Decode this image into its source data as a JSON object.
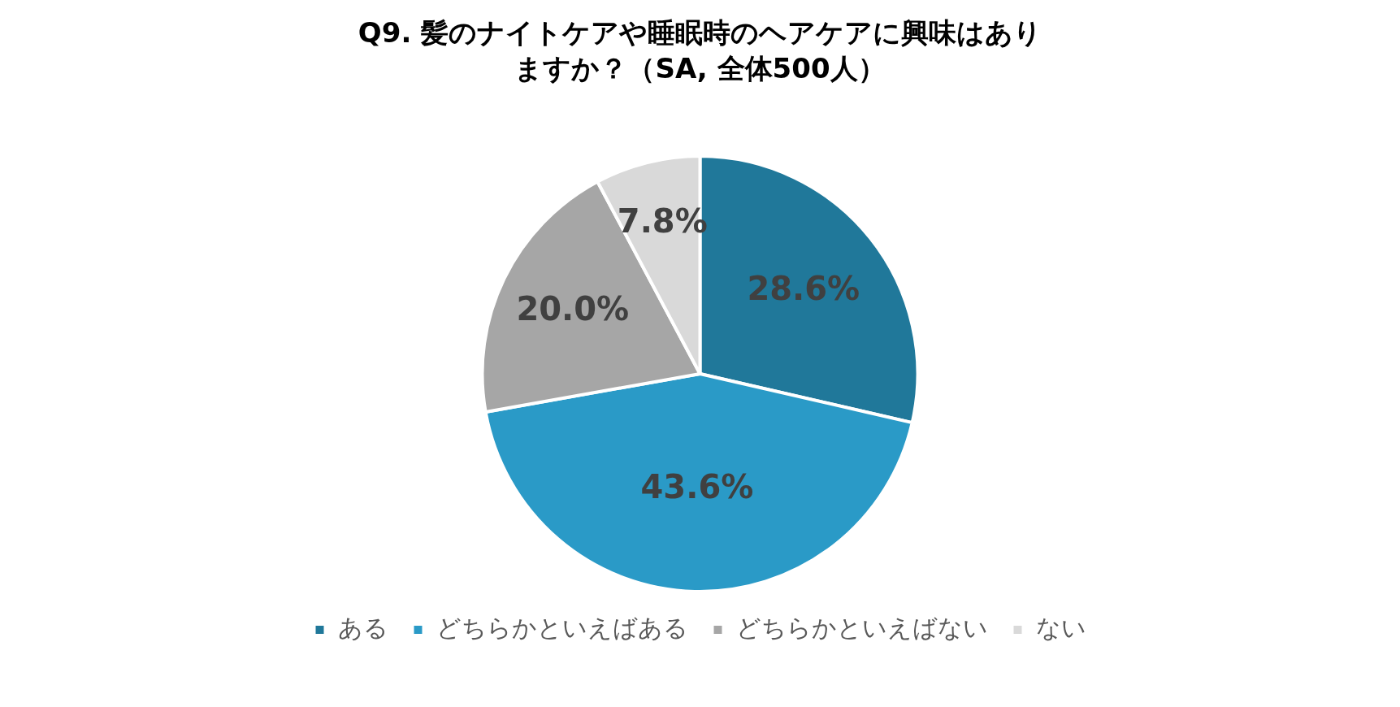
{
  "chart_data": {
    "type": "pie",
    "title": "Q9. 髪のナイトケアや睡眠時のヘアケアに興味はありますか？（SA, 全体500人）",
    "categories": [
      "ある",
      "どちらかといえばある",
      "どちらかといえばない",
      "ない"
    ],
    "values": [
      28.6,
      43.6,
      20.0,
      7.8
    ],
    "colors": [
      "#20789a",
      "#2a9ac7",
      "#a6a6a6",
      "#d9d9d9"
    ],
    "value_labels": [
      "28.6%",
      "43.6%",
      "20.0%",
      "7.8%"
    ],
    "legend": "bottom"
  }
}
